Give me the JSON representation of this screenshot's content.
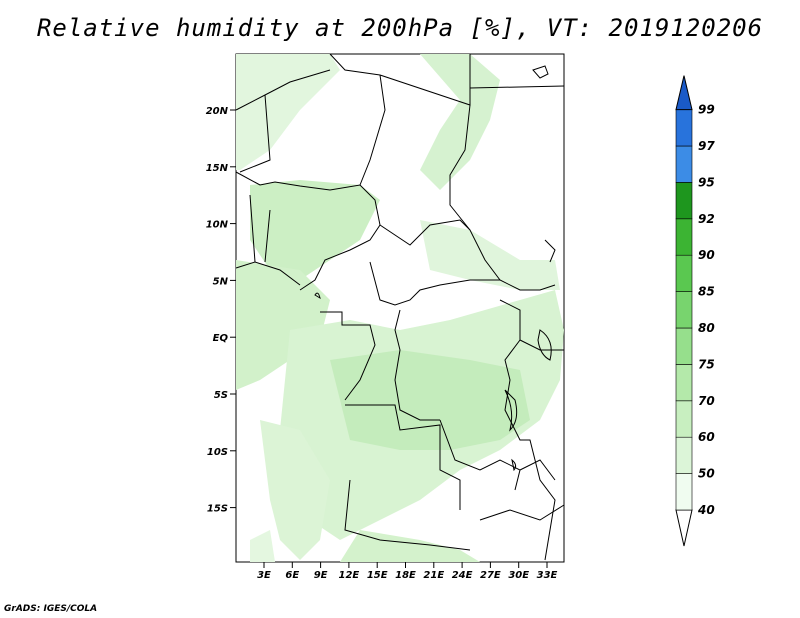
{
  "title": "Relative humidity at 200hPa [%], VT: 2019120206",
  "credit": "GrADS: IGES/COLA",
  "map": {
    "lat_ticks": [
      "20N",
      "15N",
      "10N",
      "5N",
      "EQ",
      "5S",
      "10S",
      "15S"
    ],
    "lon_ticks": [
      "3E",
      "6E",
      "9E",
      "12E",
      "15E",
      "18E",
      "21E",
      "24E",
      "27E",
      "30E",
      "33E"
    ],
    "land_fill": "#ffffff",
    "border_color": "#000000"
  },
  "colorbar": {
    "levels": [
      "40",
      "50",
      "60",
      "70",
      "75",
      "80",
      "85",
      "90",
      "92",
      "95",
      "97",
      "99"
    ],
    "colors": [
      "#f0fcf0",
      "#dcf5d8",
      "#c8efc0",
      "#b4e9aa",
      "#96df8c",
      "#78d46e",
      "#5ac850",
      "#3cb433",
      "#1e961e",
      "#3c8ce6",
      "#2873dc",
      "#1a5ac8"
    ],
    "under_color": "#ffffff"
  }
}
